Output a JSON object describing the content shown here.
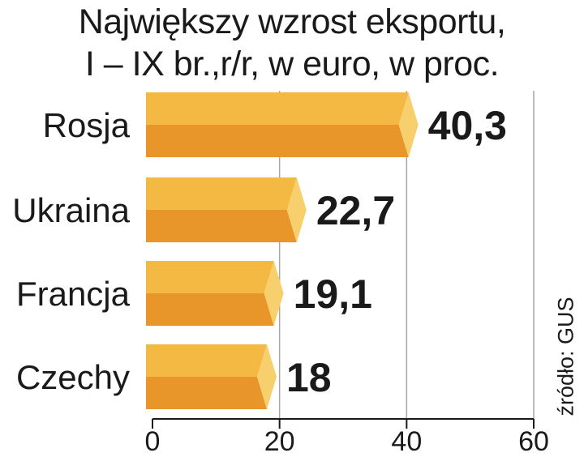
{
  "chart_data": {
    "type": "bar",
    "orientation": "horizontal",
    "title_lines": [
      "Największy wzrost eksportu,",
      "I – IX br.,r/r, w euro, w proc."
    ],
    "categories": [
      "Rosja",
      "Ukraina",
      "Francja",
      "Czechy"
    ],
    "values": [
      40.3,
      22.7,
      19.1,
      18
    ],
    "value_labels": [
      "40,3",
      "22,7",
      "19,1",
      "18"
    ],
    "xlim": [
      0,
      60
    ],
    "xticks": [
      0,
      20,
      40,
      60
    ],
    "grid": true,
    "source": "źródło: GUS",
    "colors": {
      "bar_top": "#f4b942",
      "bar_bottom": "#e8952a",
      "bar_cap": "#f7cf6c",
      "grid": "#a6a6a6",
      "axis": "#1a1a1a"
    }
  }
}
